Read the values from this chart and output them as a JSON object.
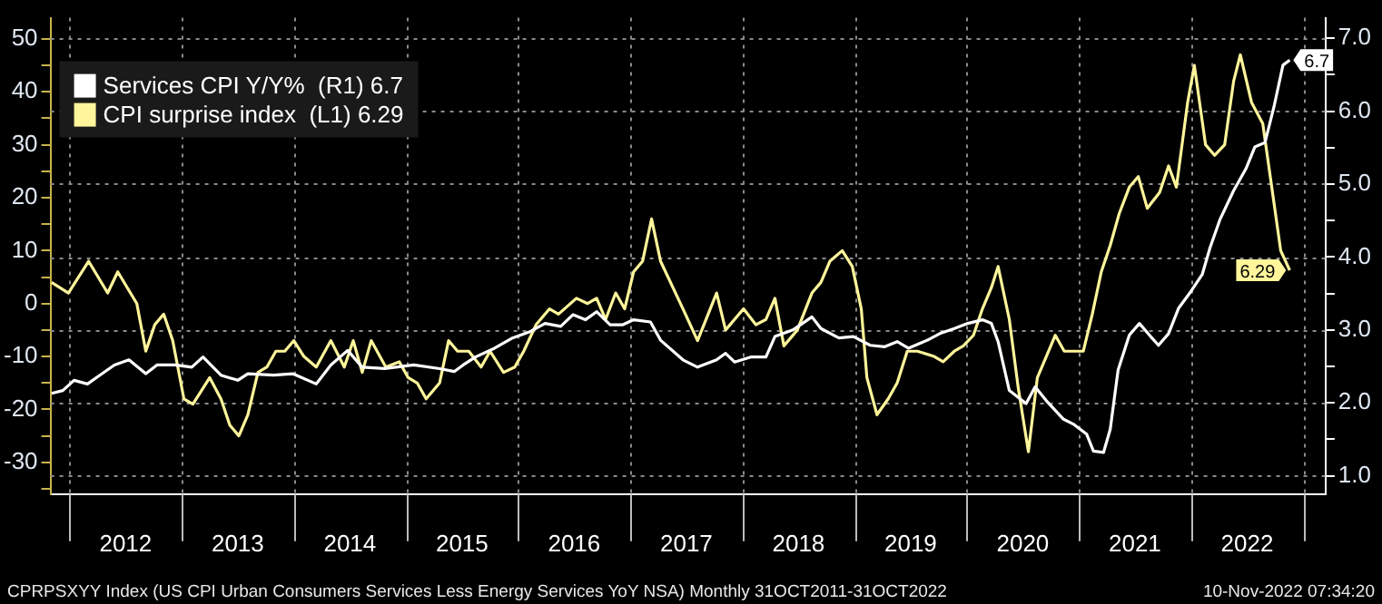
{
  "chart_data": {
    "type": "line",
    "xlim": [
      2011.83,
      2023.2
    ],
    "xticks": [
      {
        "value": 2012,
        "label": null
      },
      {
        "value": 2012.5,
        "label": "2012"
      },
      {
        "value": 2013,
        "label": null
      },
      {
        "value": 2013.5,
        "label": "2013"
      },
      {
        "value": 2014,
        "label": null
      },
      {
        "value": 2014.5,
        "label": "2014"
      },
      {
        "value": 2015,
        "label": null
      },
      {
        "value": 2015.5,
        "label": "2015"
      },
      {
        "value": 2016,
        "label": null
      },
      {
        "value": 2016.5,
        "label": "2016"
      },
      {
        "value": 2017,
        "label": null
      },
      {
        "value": 2017.5,
        "label": "2017"
      },
      {
        "value": 2018,
        "label": null
      },
      {
        "value": 2018.5,
        "label": "2018"
      },
      {
        "value": 2019,
        "label": null
      },
      {
        "value": 2019.5,
        "label": "2019"
      },
      {
        "value": 2020,
        "label": null
      },
      {
        "value": 2020.5,
        "label": "2020"
      },
      {
        "value": 2021,
        "label": null
      },
      {
        "value": 2021.5,
        "label": "2021"
      },
      {
        "value": 2022,
        "label": null
      },
      {
        "value": 2022.5,
        "label": "2022"
      },
      {
        "value": 2023,
        "label": null
      }
    ],
    "ylim": [
      -36,
      54
    ],
    "yticks": [
      {
        "value": -35,
        "label": null
      },
      -30,
      {
        "value": -25,
        "label": null
      },
      -20,
      {
        "value": -15,
        "label": null
      },
      -10,
      {
        "value": -5,
        "label": null
      },
      0,
      {
        "value": 5,
        "label": null
      },
      10,
      {
        "value": 15,
        "label": null
      },
      20,
      {
        "value": 25,
        "label": null
      },
      30,
      {
        "value": 35,
        "label": null
      },
      40,
      {
        "value": 45,
        "label": null
      },
      50
    ],
    "y2lim": [
      0.75,
      7.28
    ],
    "y2ticks": [
      {
        "value": 1,
        "label": "1.0"
      },
      {
        "value": 1.5,
        "label": null
      },
      {
        "value": 2,
        "label": "2.0"
      },
      {
        "value": 2.5,
        "label": null
      },
      {
        "value": 3,
        "label": "3.0"
      },
      {
        "value": 3.5,
        "label": null
      },
      {
        "value": 4,
        "label": "4.0"
      },
      {
        "value": 4.5,
        "label": null
      },
      {
        "value": 5,
        "label": "5.0"
      },
      {
        "value": 5.5,
        "label": null
      },
      {
        "value": 6,
        "label": "6.0"
      },
      {
        "value": 6.5,
        "label": null
      },
      {
        "value": 7,
        "label": "7.0"
      }
    ],
    "grid": true,
    "legend": "top left",
    "series": [
      {
        "name": "Services CPI Y/Y%  (R1) 6.7",
        "color": "#ffffff",
        "axis": "y2",
        "x": [
          2011.84,
          2011.94,
          2012.04,
          2012.16,
          2012.27,
          2012.4,
          2012.53,
          2012.68,
          2012.78,
          2012.94,
          2013.09,
          2013.19,
          2013.35,
          2013.5,
          2013.59,
          2013.82,
          2013.99,
          2014.2,
          2014.33,
          2014.48,
          2014.61,
          2014.81,
          2015.07,
          2015.3,
          2015.43,
          2015.51,
          2015.62,
          2015.79,
          2015.95,
          2016.11,
          2016.24,
          2016.38,
          2016.49,
          2016.6,
          2016.7,
          2016.82,
          2016.93,
          2017.03,
          2017.18,
          2017.27,
          2017.47,
          2017.6,
          2017.77,
          2017.85,
          2017.93,
          2018.08,
          2018.21,
          2018.29,
          2018.45,
          2018.62,
          2018.7,
          2018.86,
          2018.99,
          2019.14,
          2019.27,
          2019.38,
          2019.48,
          2019.65,
          2019.76,
          2019.89,
          2020.01,
          2020.14,
          2020.22,
          2020.28,
          2020.38,
          2020.53,
          2020.61,
          2020.71,
          2020.86,
          2020.95,
          2021.07,
          2021.13,
          2021.22,
          2021.28,
          2021.35,
          2021.45,
          2021.54,
          2021.64,
          2021.71,
          2021.8,
          2021.89,
          2022.0,
          2022.1,
          2022.17,
          2022.26,
          2022.38,
          2022.49,
          2022.57,
          2022.66,
          2022.74,
          2022.82,
          2022.88
        ],
        "values": [
          2.13,
          2.17,
          2.31,
          2.26,
          2.38,
          2.52,
          2.59,
          2.4,
          2.52,
          2.52,
          2.49,
          2.63,
          2.38,
          2.31,
          2.4,
          2.38,
          2.4,
          2.26,
          2.52,
          2.72,
          2.49,
          2.47,
          2.52,
          2.47,
          2.43,
          2.52,
          2.63,
          2.75,
          2.89,
          2.98,
          3.09,
          3.05,
          3.21,
          3.14,
          3.25,
          3.07,
          3.07,
          3.14,
          3.11,
          2.86,
          2.59,
          2.49,
          2.59,
          2.68,
          2.56,
          2.63,
          2.63,
          2.91,
          3.0,
          3.18,
          3.02,
          2.89,
          2.91,
          2.79,
          2.77,
          2.84,
          2.75,
          2.86,
          2.95,
          3.02,
          3.09,
          3.14,
          3.09,
          2.84,
          2.17,
          1.99,
          2.22,
          2.03,
          1.78,
          1.71,
          1.57,
          1.34,
          1.32,
          1.64,
          2.45,
          2.93,
          3.09,
          2.91,
          2.79,
          2.95,
          3.3,
          3.53,
          3.76,
          4.13,
          4.52,
          4.91,
          5.21,
          5.51,
          5.57,
          6.06,
          6.63,
          6.7
        ],
        "value_labels": [
          null,
          null,
          null,
          null,
          null,
          null,
          null,
          null,
          null,
          null,
          null,
          null,
          null,
          null,
          null,
          null,
          null,
          null,
          null,
          null,
          null,
          null,
          null,
          null,
          null,
          null,
          null,
          null,
          null,
          null,
          null,
          null,
          null,
          null,
          null,
          null,
          null,
          null,
          null,
          null,
          null,
          null,
          null,
          null,
          null,
          null,
          null,
          null,
          null,
          null,
          null,
          null,
          null,
          null,
          null,
          null,
          null,
          null,
          null,
          null,
          null,
          null,
          null,
          null,
          null,
          null,
          null,
          null,
          null,
          null,
          null,
          null,
          null,
          null,
          null,
          null,
          null,
          null,
          null,
          null,
          null,
          null,
          null,
          null,
          null,
          null,
          null,
          null,
          null,
          null,
          null,
          "6.7"
        ]
      },
      {
        "name": "CPI surprise index  (L1) 6.29",
        "color": "#fff59a",
        "x": [
          2011.84,
          2011.99,
          2012.17,
          2012.34,
          2012.43,
          2012.6,
          2012.68,
          2012.76,
          2012.84,
          2012.92,
          2013.02,
          2013.1,
          2013.25,
          2013.35,
          2013.43,
          2013.51,
          2013.59,
          2013.68,
          2013.76,
          2013.84,
          2013.92,
          2014.0,
          2014.09,
          2014.2,
          2014.33,
          2014.45,
          2014.53,
          2014.61,
          2014.69,
          2014.82,
          2014.94,
          2015.02,
          2015.1,
          2015.18,
          2015.3,
          2015.38,
          2015.46,
          2015.56,
          2015.67,
          2015.75,
          2015.87,
          2015.97,
          2016.05,
          2016.16,
          2016.28,
          2016.36,
          2016.52,
          2016.62,
          2016.7,
          2016.78,
          2016.87,
          2016.95,
          2017.03,
          2017.11,
          2017.19,
          2017.27,
          2017.47,
          2017.6,
          2017.77,
          2017.85,
          2018.01,
          2018.12,
          2018.21,
          2018.29,
          2018.37,
          2018.49,
          2018.62,
          2018.7,
          2018.78,
          2018.89,
          2018.98,
          2019.06,
          2019.11,
          2019.2,
          2019.3,
          2019.38,
          2019.47,
          2019.56,
          2019.71,
          2019.79,
          2019.89,
          2019.97,
          2020.06,
          2020.14,
          2020.22,
          2020.28,
          2020.38,
          2020.46,
          2020.55,
          2020.63,
          2020.71,
          2020.79,
          2020.87,
          2021.04,
          2021.12,
          2021.2,
          2021.28,
          2021.36,
          2021.45,
          2021.53,
          2021.61,
          2021.72,
          2021.8,
          2021.87,
          2021.97,
          2022.03,
          2022.13,
          2022.21,
          2022.3,
          2022.38,
          2022.44,
          2022.54,
          2022.64,
          2022.74,
          2022.8,
          2022.88
        ],
        "values": [
          4,
          2,
          8,
          2,
          6,
          0,
          -9,
          -4,
          -2,
          -7,
          -18,
          -19,
          -14,
          -18,
          -23,
          -25,
          -21,
          -13,
          -12,
          -9,
          -9,
          -7,
          -10,
          -12,
          -7,
          -12,
          -7,
          -13,
          -7,
          -12,
          -11,
          -14,
          -15,
          -18,
          -15,
          -7,
          -9,
          -9,
          -12,
          -9,
          -13,
          -12,
          -9,
          -4,
          -1,
          -2,
          1,
          0,
          1,
          -3,
          2,
          -1,
          6,
          8,
          16,
          8,
          -1,
          -7,
          2,
          -5,
          -1,
          -4,
          -3,
          1,
          -8,
          -5,
          2,
          4,
          8,
          10,
          7,
          -1,
          -14,
          -21,
          -18,
          -15,
          -9,
          -9,
          -10,
          -11,
          -9,
          -8,
          -6,
          -1,
          3,
          7,
          -3,
          -16,
          -28,
          -14,
          -10,
          -6,
          -9,
          -9,
          -2,
          6,
          11,
          17,
          22,
          24,
          18,
          21,
          26,
          22,
          38,
          45,
          30,
          28,
          30,
          42,
          47,
          38,
          34,
          19,
          10,
          6.29
        ],
        "value_labels": [
          null,
          null,
          null,
          null,
          null,
          null,
          null,
          null,
          null,
          null,
          null,
          null,
          null,
          null,
          null,
          null,
          null,
          null,
          null,
          null,
          null,
          null,
          null,
          null,
          null,
          null,
          null,
          null,
          null,
          null,
          null,
          null,
          null,
          null,
          null,
          null,
          null,
          null,
          null,
          null,
          null,
          null,
          null,
          null,
          null,
          null,
          null,
          null,
          null,
          null,
          null,
          null,
          null,
          null,
          null,
          null,
          null,
          null,
          null,
          null,
          null,
          null,
          null,
          null,
          null,
          null,
          null,
          null,
          null,
          null,
          null,
          null,
          null,
          null,
          null,
          null,
          null,
          null,
          null,
          null,
          null,
          null,
          null,
          null,
          null,
          null,
          null,
          null,
          null,
          null,
          null,
          null,
          null,
          null,
          null,
          null,
          null,
          null,
          null,
          null,
          null,
          null,
          null,
          null,
          null,
          null,
          null,
          null,
          null,
          null,
          null,
          null,
          null,
          null,
          null,
          "6.29"
        ]
      }
    ],
    "annotations": [
      "CPRPSXYY Index (US CPI Urban Consumers Services Less Energy Services YoY NSA)  Monthly 31OCT2011-31OCT2022",
      "10-Nov-2022 07:34:20"
    ]
  }
}
